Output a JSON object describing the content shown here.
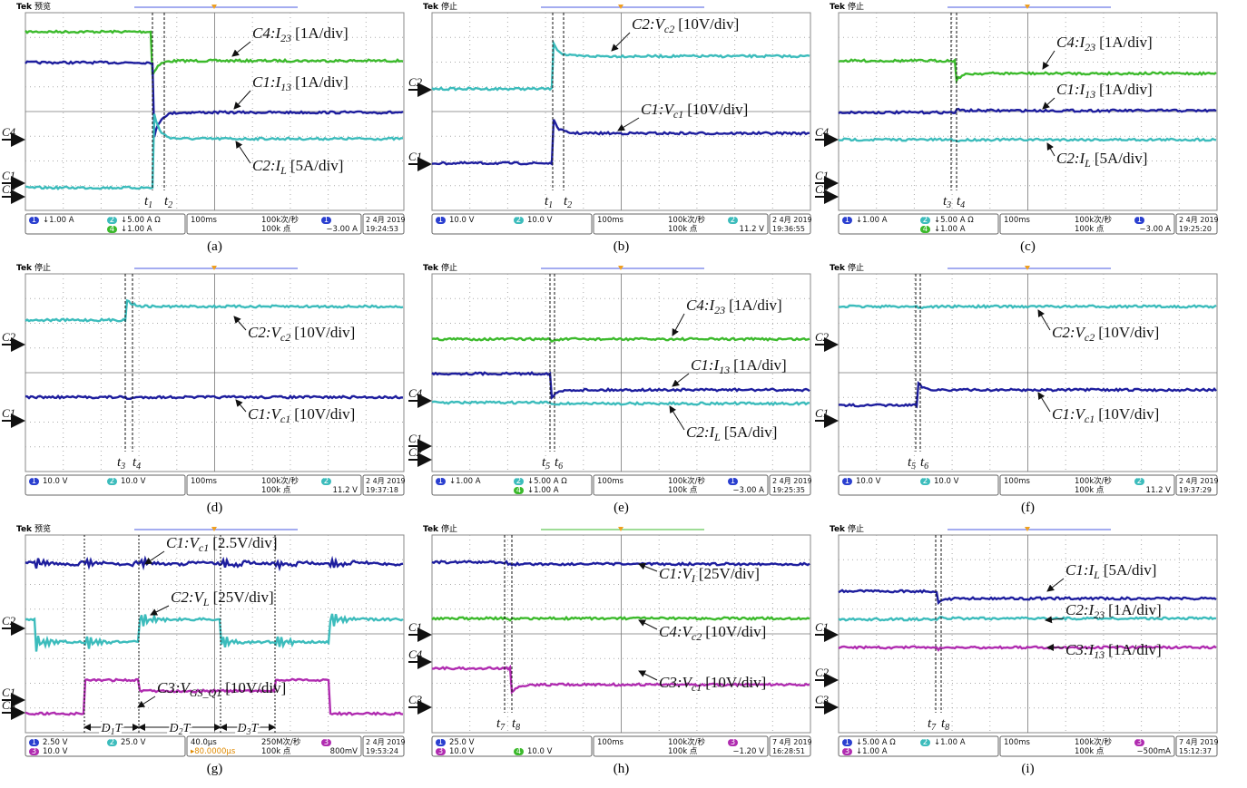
{
  "panels": [
    {
      "header": {
        "brand": "Tek",
        "mode": "预览"
      },
      "annotations": [
        {
          "main": "C4:I",
          "sub": "23",
          "unit": "[1A/div]"
        },
        {
          "main": "C1:I",
          "sub": "13",
          "unit": "[1A/div]"
        },
        {
          "main": "C2:I",
          "sub": "L",
          "unit": "[5A/div]"
        }
      ],
      "markers": [
        "C4",
        "C1",
        "C2"
      ],
      "times": [
        {
          "base": "t",
          "sub": "1"
        },
        {
          "base": "t",
          "sub": "2"
        }
      ],
      "status": {
        "channels": [
          {
            "n": "1",
            "v": "↓1.00 A"
          },
          {
            "n": "2",
            "v": "↓5.00 A Ω"
          },
          {
            "n": "4",
            "v": "↓1.00 A"
          }
        ],
        "horizontal": "100ms",
        "rate": "100k次/秒",
        "points": "100k 点",
        "trigger_channel": "1",
        "trigger": "−3.00 A",
        "date": "2 4月 2019",
        "time": "19:24:53"
      },
      "caption": "(a)"
    },
    {
      "header": {
        "brand": "Tek",
        "mode": "停止"
      },
      "annotations": [
        {
          "main": "C2:V",
          "sub": "c2",
          "unit": "[10V/div]"
        },
        {
          "main": "C1:V",
          "sub": "c1",
          "unit": "[10V/div]"
        }
      ],
      "markers": [
        "C2",
        "C1"
      ],
      "times": [
        {
          "base": "t",
          "sub": "1"
        },
        {
          "base": "t",
          "sub": "2"
        }
      ],
      "status": {
        "channels": [
          {
            "n": "1",
            "v": "10.0 V"
          },
          {
            "n": "2",
            "v": "10.0 V"
          }
        ],
        "horizontal": "100ms",
        "rate": "100k次/秒",
        "points": "100k 点",
        "trigger_channel": "2",
        "trigger": "11.2 V",
        "date": "2 4月 2019",
        "time": "19:36:55"
      },
      "caption": "(b)"
    },
    {
      "header": {
        "brand": "Tek",
        "mode": "停止"
      },
      "annotations": [
        {
          "main": "C4:I",
          "sub": "23",
          "unit": "[1A/div]"
        },
        {
          "main": "C1:I",
          "sub": "13",
          "unit": "[1A/div]"
        },
        {
          "main": "C2:I",
          "sub": "L",
          "unit": "[5A/div]"
        }
      ],
      "markers": [
        "C4",
        "C1",
        "C2"
      ],
      "times": [
        {
          "base": "t",
          "sub": "3"
        },
        {
          "base": "t",
          "sub": "4"
        }
      ],
      "status": {
        "channels": [
          {
            "n": "1",
            "v": "↓1.00 A"
          },
          {
            "n": "2",
            "v": "↓5.00 A Ω"
          },
          {
            "n": "4",
            "v": "↓1.00 A"
          }
        ],
        "horizontal": "100ms",
        "rate": "100k次/秒",
        "points": "100k 点",
        "trigger_channel": "1",
        "trigger": "−3.00 A",
        "date": "2 4月 2019",
        "time": "19:25:20"
      },
      "caption": "(c)"
    },
    {
      "header": {
        "brand": "Tek",
        "mode": "停止"
      },
      "annotations": [
        {
          "main": "C2:V",
          "sub": "c2",
          "unit": "[10V/div]"
        },
        {
          "main": "C1:V",
          "sub": "c1",
          "unit": "[10V/div]"
        }
      ],
      "markers": [
        "C2",
        "C1"
      ],
      "times": [
        {
          "base": "t",
          "sub": "3"
        },
        {
          "base": "t",
          "sub": "4"
        }
      ],
      "status": {
        "channels": [
          {
            "n": "1",
            "v": "10.0 V"
          },
          {
            "n": "2",
            "v": "10.0 V"
          }
        ],
        "horizontal": "100ms",
        "rate": "100k次/秒",
        "points": "100k 点",
        "trigger_channel": "2",
        "trigger": "11.2 V",
        "date": "2 4月 2019",
        "time": "19:37:18"
      },
      "caption": "(d)"
    },
    {
      "header": {
        "brand": "Tek",
        "mode": "停止"
      },
      "annotations": [
        {
          "main": "C4:I",
          "sub": "23",
          "unit": "[1A/div]"
        },
        {
          "main": "C1:I",
          "sub": "13",
          "unit": "[1A/div]"
        },
        {
          "main": "C2:I",
          "sub": "L",
          "unit": "[5A/div]"
        }
      ],
      "markers": [
        "C4",
        "C1",
        "C2"
      ],
      "times": [
        {
          "base": "t",
          "sub": "5"
        },
        {
          "base": "t",
          "sub": "6"
        }
      ],
      "status": {
        "channels": [
          {
            "n": "1",
            "v": "↓1.00 A"
          },
          {
            "n": "2",
            "v": "↓5.00 A Ω"
          },
          {
            "n": "4",
            "v": "↓1.00 A"
          }
        ],
        "horizontal": "100ms",
        "rate": "100k次/秒",
        "points": "100k 点",
        "trigger_channel": "1",
        "trigger": "−3.00 A",
        "date": "2 4月 2019",
        "time": "19:25:35"
      },
      "caption": "(e)"
    },
    {
      "header": {
        "brand": "Tek",
        "mode": "停止"
      },
      "annotations": [
        {
          "main": "C2:V",
          "sub": "c2",
          "unit": "[10V/div]"
        },
        {
          "main": "C1:V",
          "sub": "c1",
          "unit": "[10V/div]"
        }
      ],
      "markers": [
        "C2",
        "C1"
      ],
      "times": [
        {
          "base": "t",
          "sub": "5"
        },
        {
          "base": "t",
          "sub": "6"
        }
      ],
      "status": {
        "channels": [
          {
            "n": "1",
            "v": "10.0 V"
          },
          {
            "n": "2",
            "v": "10.0 V"
          }
        ],
        "horizontal": "100ms",
        "rate": "100k次/秒",
        "points": "100k 点",
        "trigger_channel": "2",
        "trigger": "11.2 V",
        "date": "2 4月 2019",
        "time": "19:37:29"
      },
      "caption": "(f)"
    },
    {
      "header": {
        "brand": "Tek",
        "mode": "预览"
      },
      "annotations": [
        {
          "main": "C1:V",
          "sub": "c1",
          "unit": "[2.5V/div]"
        },
        {
          "main": "C2:V",
          "sub": "L",
          "unit": "[25V/div]"
        },
        {
          "main": "C3:V",
          "sub": "GS_Q1",
          "unit": "[10V/div]"
        }
      ],
      "markers": [
        "C2",
        "C1",
        "C3"
      ],
      "times": [],
      "intervals": [
        {
          "base": "D",
          "sub": "1",
          "tail": "T"
        },
        {
          "base": "D",
          "sub": "2",
          "tail": "T"
        },
        {
          "base": "D",
          "sub": "3",
          "tail": "T"
        }
      ],
      "status": {
        "channels": [
          {
            "n": "1",
            "v": "2.50 V"
          },
          {
            "n": "2",
            "v": "25.0 V"
          },
          {
            "n": "3",
            "v": "10.0 V"
          }
        ],
        "horizontal": "40.0μs",
        "delay": "▸80.0000μs",
        "rate": "250M次/秒",
        "points": "100k 点",
        "trigger_channel": "3",
        "trigger": "800mV",
        "date": "2 4月 2019",
        "time": "19:53:24"
      },
      "caption": "(g)"
    },
    {
      "header": {
        "brand": "Tek",
        "mode": "停止"
      },
      "annotations": [
        {
          "main": "C1:V",
          "sub": "I",
          "unit": "[25V/div]"
        },
        {
          "main": "C4:V",
          "sub": "c2",
          "unit": "[10V/div]"
        },
        {
          "main": "C3:V",
          "sub": "c1",
          "unit": "[10V/div]"
        }
      ],
      "markers": [
        "C1",
        "C4",
        "C3"
      ],
      "times": [
        {
          "base": "t",
          "sub": "7"
        },
        {
          "base": "t",
          "sub": "8"
        }
      ],
      "status": {
        "channels": [
          {
            "n": "1",
            "v": "25.0 V"
          },
          {
            "n": "3",
            "v": "10.0 V"
          },
          {
            "n": "4",
            "v": "10.0 V"
          }
        ],
        "horizontal": "100ms",
        "rate": "100k次/秒",
        "points": "100k 点",
        "trigger_channel": "3",
        "trigger": "−1.20 V",
        "date": "7 4月 2019",
        "time": "16:28:51"
      },
      "caption": "(h)"
    },
    {
      "header": {
        "brand": "Tek",
        "mode": "停止"
      },
      "annotations": [
        {
          "main": "C1:I",
          "sub": "L",
          "unit": "[5A/div]"
        },
        {
          "main": "C2:I",
          "sub": "23",
          "unit": "[1A/div]"
        },
        {
          "main": "C3:I",
          "sub": "13",
          "unit": "[1A/div]"
        }
      ],
      "markers": [
        "C1",
        "C2",
        "C3"
      ],
      "times": [
        {
          "base": "t",
          "sub": "7"
        },
        {
          "base": "t",
          "sub": "8"
        }
      ],
      "status": {
        "channels": [
          {
            "n": "1",
            "v": "↓5.00 A Ω"
          },
          {
            "n": "2",
            "v": "↓1.00 A"
          },
          {
            "n": "3",
            "v": "↓1.00 A"
          }
        ],
        "horizontal": "100ms",
        "rate": "100k次/秒",
        "points": "100k 点",
        "trigger_channel": "3",
        "trigger": "−500mA",
        "date": "7 4月 2019",
        "time": "15:12:37"
      },
      "caption": "(i)"
    }
  ]
}
